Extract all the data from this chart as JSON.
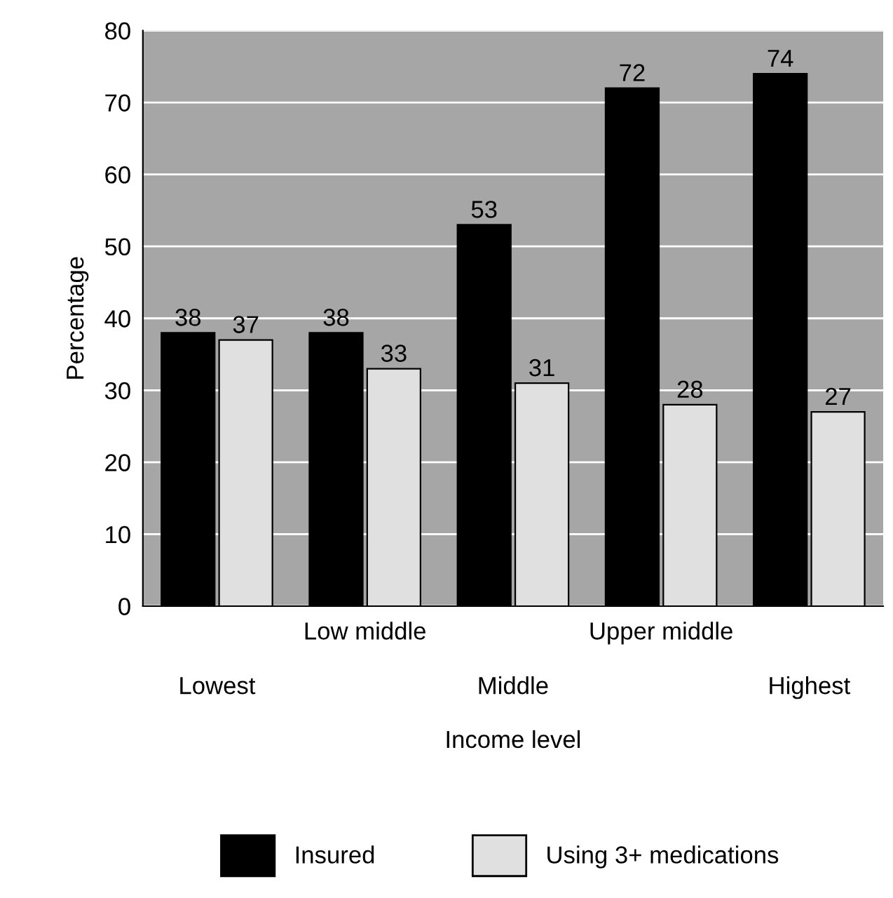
{
  "chart_data": {
    "type": "bar",
    "xlabel": "Income level",
    "ylabel": "Percentage",
    "categories": [
      "Lowest",
      "Low middle",
      "Middle",
      "Upper middle",
      "Highest"
    ],
    "series": [
      {
        "name": "Insured",
        "color": "#000000",
        "values": [
          38,
          38,
          53,
          72,
          74
        ]
      },
      {
        "name": "Using 3+ medications",
        "color": "#e0e0e0",
        "values": [
          37,
          33,
          31,
          28,
          27
        ]
      }
    ],
    "ylim": [
      0,
      80
    ],
    "yticks": [
      0,
      10,
      20,
      30,
      40,
      50,
      60,
      70,
      80
    ],
    "grid": "y",
    "legend": "bottom",
    "data_labels": true
  }
}
